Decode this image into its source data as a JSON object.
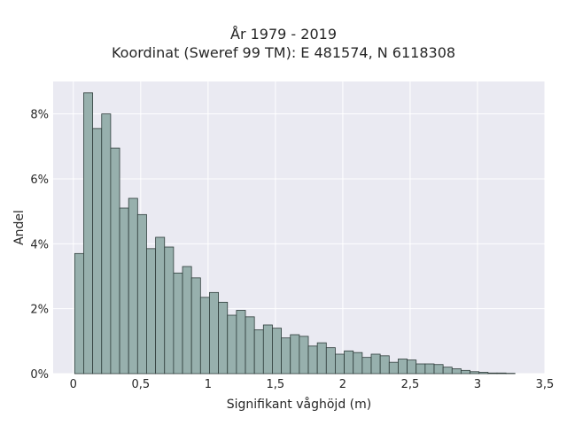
{
  "chart_data": {
    "type": "bar",
    "title": "År 1979 - 2019",
    "subtitle": "Koordinat (Sweref 99 TM): E 481574, N 6118308",
    "xlabel": "Signifikant våghöjd (m)",
    "ylabel": "Andel",
    "xlim": [
      -0.15,
      3.5
    ],
    "ylim": [
      0,
      9.0
    ],
    "grid": true,
    "x_ticks": [
      {
        "value": 0,
        "label": "0"
      },
      {
        "value": 0.5,
        "label": "0,5"
      },
      {
        "value": 1,
        "label": "1"
      },
      {
        "value": 1.5,
        "label": "1,5"
      },
      {
        "value": 2,
        "label": "2"
      },
      {
        "value": 2.5,
        "label": "2,5"
      },
      {
        "value": 3,
        "label": "3"
      },
      {
        "value": 3.5,
        "label": "3,5"
      }
    ],
    "y_ticks": [
      {
        "value": 0,
        "label": "0%"
      },
      {
        "value": 2,
        "label": "2%"
      },
      {
        "value": 4,
        "label": "4%"
      },
      {
        "value": 6,
        "label": "6%"
      },
      {
        "value": 8,
        "label": "8%"
      }
    ],
    "bin_width": 0.0667,
    "bin_start": 0.01,
    "values": [
      3.7,
      8.65,
      7.55,
      8.0,
      6.95,
      5.1,
      5.4,
      4.9,
      3.85,
      4.2,
      3.9,
      3.1,
      3.3,
      2.95,
      2.35,
      2.5,
      2.2,
      1.8,
      1.95,
      1.75,
      1.35,
      1.5,
      1.4,
      1.1,
      1.2,
      1.15,
      0.85,
      0.95,
      0.8,
      0.6,
      0.7,
      0.65,
      0.5,
      0.6,
      0.55,
      0.35,
      0.45,
      0.42,
      0.3,
      0.3,
      0.28,
      0.2,
      0.15,
      0.1,
      0.06,
      0.04,
      0.02,
      0.02,
      0.01
    ],
    "colors": {
      "bar_fill": "#97b0ad",
      "bar_edge": "#2f3d3b",
      "plot_bg": "#eaeaf2",
      "grid": "#ffffff"
    }
  }
}
